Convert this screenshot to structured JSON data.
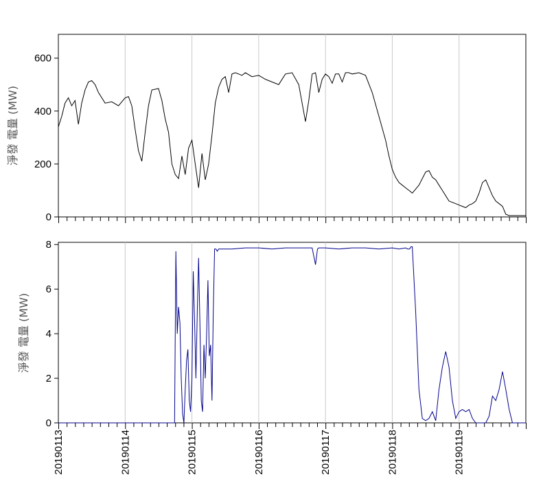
{
  "chart_data": [
    {
      "type": "line",
      "ylabel": "淨發 電量 (MW)",
      "ylim": [
        0,
        690
      ],
      "yticks": [
        0,
        200,
        400,
        600
      ],
      "xlim": [
        0,
        7
      ],
      "grid": "vertical",
      "series": [
        {
          "color": "#000000",
          "x": [
            0.0,
            0.05,
            0.1,
            0.15,
            0.2,
            0.25,
            0.3,
            0.35,
            0.4,
            0.45,
            0.5,
            0.55,
            0.6,
            0.7,
            0.8,
            0.9,
            1.0,
            1.05,
            1.1,
            1.15,
            1.2,
            1.25,
            1.3,
            1.35,
            1.4,
            1.5,
            1.55,
            1.6,
            1.65,
            1.7,
            1.75,
            1.8,
            1.85,
            1.9,
            1.95,
            2.0,
            2.05,
            2.1,
            2.15,
            2.2,
            2.25,
            2.3,
            2.35,
            2.4,
            2.45,
            2.5,
            2.55,
            2.6,
            2.65,
            2.7,
            2.75,
            2.8,
            2.9,
            3.0,
            3.1,
            3.2,
            3.3,
            3.4,
            3.5,
            3.6,
            3.7,
            3.75,
            3.8,
            3.85,
            3.9,
            3.95,
            4.0,
            4.05,
            4.1,
            4.15,
            4.2,
            4.25,
            4.3,
            4.35,
            4.4,
            4.5,
            4.6,
            4.7,
            4.8,
            4.9,
            4.95,
            5.0,
            5.05,
            5.1,
            5.15,
            5.2,
            5.25,
            5.3,
            5.4,
            5.5,
            5.55,
            5.6,
            5.65,
            5.7,
            5.75,
            5.8,
            5.85,
            5.9,
            5.95,
            6.0,
            6.05,
            6.1,
            6.15,
            6.2,
            6.25,
            6.3,
            6.35,
            6.4,
            6.45,
            6.5,
            6.55,
            6.6,
            6.65,
            6.7,
            6.75,
            6.8,
            6.85,
            6.9,
            6.95,
            7.0
          ],
          "y": [
            340,
            380,
            430,
            450,
            420,
            440,
            350,
            430,
            480,
            510,
            515,
            500,
            470,
            430,
            435,
            420,
            450,
            455,
            420,
            330,
            250,
            210,
            320,
            420,
            480,
            485,
            440,
            370,
            320,
            200,
            160,
            145,
            230,
            160,
            260,
            290,
            200,
            110,
            240,
            140,
            200,
            310,
            430,
            490,
            520,
            530,
            470,
            540,
            545,
            540,
            535,
            545,
            530,
            535,
            520,
            510,
            500,
            540,
            545,
            500,
            360,
            440,
            540,
            545,
            470,
            520,
            540,
            530,
            505,
            540,
            540,
            510,
            545,
            545,
            540,
            545,
            535,
            470,
            380,
            290,
            230,
            180,
            150,
            130,
            120,
            110,
            100,
            90,
            120,
            170,
            175,
            150,
            140,
            120,
            100,
            80,
            60,
            55,
            50,
            45,
            40,
            35,
            45,
            50,
            60,
            90,
            130,
            140,
            110,
            80,
            60,
            50,
            40,
            10,
            5,
            5,
            5,
            5,
            5,
            5
          ]
        }
      ]
    },
    {
      "type": "line",
      "ylabel": "淨發 電量 (MW)",
      "ylim": [
        0,
        8.1
      ],
      "yticks": [
        0,
        2,
        4,
        6,
        8
      ],
      "xlim": [
        0,
        7
      ],
      "grid": "vertical",
      "xtick_labels": [
        "20190113",
        "20190114",
        "20190115",
        "20190116",
        "20190117",
        "20190118",
        "20190119"
      ],
      "series": [
        {
          "color": "#00008b",
          "x": [
            0.0,
            1.72,
            1.74,
            1.76,
            1.78,
            1.8,
            1.82,
            1.84,
            1.86,
            1.88,
            1.9,
            1.92,
            1.94,
            1.96,
            1.98,
            2.0,
            2.02,
            2.04,
            2.06,
            2.08,
            2.1,
            2.12,
            2.14,
            2.16,
            2.18,
            2.2,
            2.22,
            2.24,
            2.26,
            2.28,
            2.3,
            2.32,
            2.34,
            2.36,
            2.38,
            2.4,
            2.45,
            2.5,
            2.55,
            2.6,
            2.8,
            3.0,
            3.2,
            3.4,
            3.6,
            3.8,
            3.85,
            3.88,
            3.9,
            4.0,
            4.2,
            4.4,
            4.6,
            4.8,
            5.0,
            5.1,
            5.2,
            5.23,
            5.26,
            5.28,
            5.3,
            5.35,
            5.4,
            5.45,
            5.5,
            5.55,
            5.6,
            5.65,
            5.7,
            5.75,
            5.8,
            5.85,
            5.9,
            5.95,
            6.0,
            6.05,
            6.1,
            6.15,
            6.2,
            6.25,
            6.3,
            6.35,
            6.4,
            6.45,
            6.5,
            6.55,
            6.6,
            6.65,
            6.7,
            6.75,
            6.8,
            6.85,
            6.9,
            7.0
          ],
          "y": [
            0,
            0,
            0,
            7.7,
            4.0,
            5.2,
            4.5,
            2.0,
            0.4,
            0.0,
            1.5,
            2.8,
            3.3,
            1.0,
            0.5,
            2.0,
            6.8,
            4.5,
            2.0,
            5.0,
            7.4,
            4.5,
            1.0,
            0.5,
            3.5,
            2.0,
            4.0,
            6.4,
            3.0,
            3.5,
            1.0,
            5.0,
            7.8,
            7.8,
            7.7,
            7.8,
            7.8,
            7.8,
            7.8,
            7.8,
            7.85,
            7.85,
            7.8,
            7.85,
            7.85,
            7.85,
            7.1,
            7.8,
            7.85,
            7.85,
            7.8,
            7.85,
            7.85,
            7.8,
            7.85,
            7.8,
            7.85,
            7.8,
            7.8,
            7.9,
            7.9,
            5.0,
            1.5,
            0.2,
            0.1,
            0.2,
            0.5,
            0.1,
            1.5,
            2.5,
            3.2,
            2.5,
            1.0,
            0.2,
            0.5,
            0.6,
            0.5,
            0.6,
            0.2,
            0.0,
            0.0,
            0.0,
            0.0,
            0.3,
            1.2,
            1.0,
            1.5,
            2.3,
            1.5,
            0.6,
            0.0,
            0.0,
            0.0,
            0.0
          ]
        }
      ]
    }
  ]
}
